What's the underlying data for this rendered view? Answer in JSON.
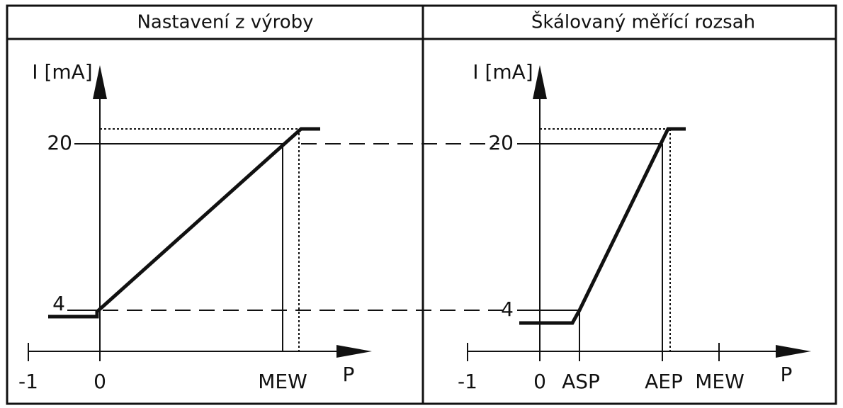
{
  "panels": [
    {
      "title": "Nastavení z výroby",
      "y_label": "I [mA]",
      "x_label": "P",
      "y_ticks": [
        "20",
        "4"
      ],
      "x_ticks": [
        "-1",
        "0",
        "MEW"
      ]
    },
    {
      "title": "Škálovaný měřící rozsah",
      "y_label": "I [mA]",
      "x_label": "P",
      "y_ticks": [
        "20",
        "4"
      ],
      "x_ticks": [
        "-1",
        "0",
        "ASP",
        "AEP",
        "MEW"
      ]
    }
  ]
}
